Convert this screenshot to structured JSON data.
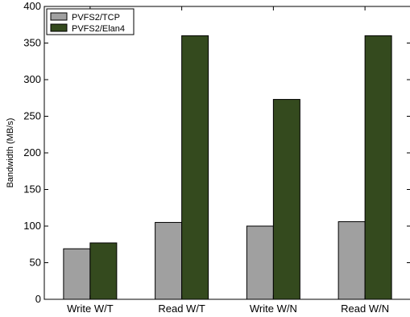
{
  "chart_data": {
    "type": "bar",
    "title": "",
    "xlabel": "",
    "ylabel": "Bandwidth (MB/s)",
    "ylim": [
      0,
      400
    ],
    "yticks": [
      0,
      50,
      100,
      150,
      200,
      250,
      300,
      350,
      400
    ],
    "grid": false,
    "legend_position": "top-left",
    "categories": [
      "Write W/T",
      "Read W/T",
      "Write W/N",
      "Read W/N"
    ],
    "series": [
      {
        "name": "PVFS2/TCP",
        "values": [
          69,
          105,
          100,
          106
        ],
        "color": "#a0a0a0"
      },
      {
        "name": "PVFS2/Elan4",
        "values": [
          77,
          360,
          273,
          360
        ],
        "color": "#344a1e"
      }
    ]
  }
}
